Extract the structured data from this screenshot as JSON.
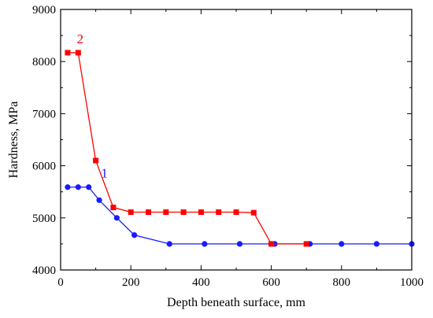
{
  "chart_data": {
    "type": "line",
    "xlabel": "Depth beneath surface, mm",
    "ylabel": "Hardness, MPa",
    "xlim": [
      0,
      1000
    ],
    "ylim": [
      4000,
      9000
    ],
    "xticks": [
      0,
      200,
      400,
      600,
      800,
      1000
    ],
    "yticks": [
      4000,
      5000,
      6000,
      7000,
      8000,
      9000
    ],
    "grid": false,
    "series": [
      {
        "name": "1",
        "color": "#1a1aff",
        "marker": "circle",
        "x": [
          20,
          50,
          80,
          110,
          160,
          210,
          310,
          410,
          510,
          610,
          710,
          800,
          900,
          1000
        ],
        "y": [
          5590,
          5590,
          5590,
          5340,
          5000,
          4670,
          4500,
          4500,
          4500,
          4500,
          4500,
          4500,
          4500,
          4500
        ]
      },
      {
        "name": "2",
        "color": "#ff0000",
        "marker": "square",
        "x": [
          20,
          50,
          100,
          150,
          200,
          250,
          300,
          350,
          400,
          450,
          500,
          550,
          600,
          700
        ],
        "y": [
          8170,
          8170,
          6100,
          5200,
          5110,
          5110,
          5110,
          5110,
          5110,
          5110,
          5110,
          5100,
          4500,
          4500
        ]
      }
    ]
  }
}
